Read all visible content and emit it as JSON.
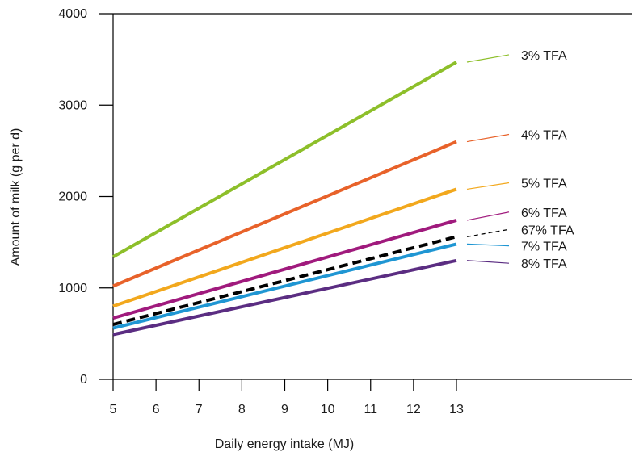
{
  "chart_data": {
    "type": "line",
    "title": "",
    "xlabel": "Daily energy intake (MJ)",
    "ylabel": "Amount of milk (g per d)",
    "xlim": [
      5,
      18
    ],
    "ylim": [
      0,
      4000
    ],
    "x_ticks": [
      5,
      6,
      7,
      8,
      9,
      10,
      11,
      12,
      13
    ],
    "y_ticks": [
      0,
      1000,
      2000,
      3000,
      4000
    ],
    "grid": false,
    "legend": "right, labels attached to line ends",
    "x": [
      5,
      13
    ],
    "series": [
      {
        "name": "3% TFA",
        "values": [
          1340,
          3470
        ],
        "color": "#8dbf2a",
        "dashed": false,
        "label_value": 3550
      },
      {
        "name": "4% TFA",
        "values": [
          1020,
          2600
        ],
        "color": "#e8622a",
        "dashed": false,
        "label_value": 2680
      },
      {
        "name": "5% TFA",
        "values": [
          800,
          2080
        ],
        "color": "#f2a81d",
        "dashed": false,
        "label_value": 2150
      },
      {
        "name": "6% TFA",
        "values": [
          670,
          1740
        ],
        "color": "#a01a7d",
        "dashed": false,
        "label_value": 1830
      },
      {
        "name": "67% TFA",
        "values": [
          600,
          1560
        ],
        "color": "#000000",
        "dashed": true,
        "label_value": 1640
      },
      {
        "name": "7% TFA",
        "values": [
          560,
          1480
        ],
        "color": "#1f96d3",
        "dashed": false,
        "label_value": 1460
      },
      {
        "name": "8% TFA",
        "values": [
          490,
          1300
        ],
        "color": "#5b2d82",
        "dashed": false,
        "label_value": 1270
      }
    ]
  }
}
